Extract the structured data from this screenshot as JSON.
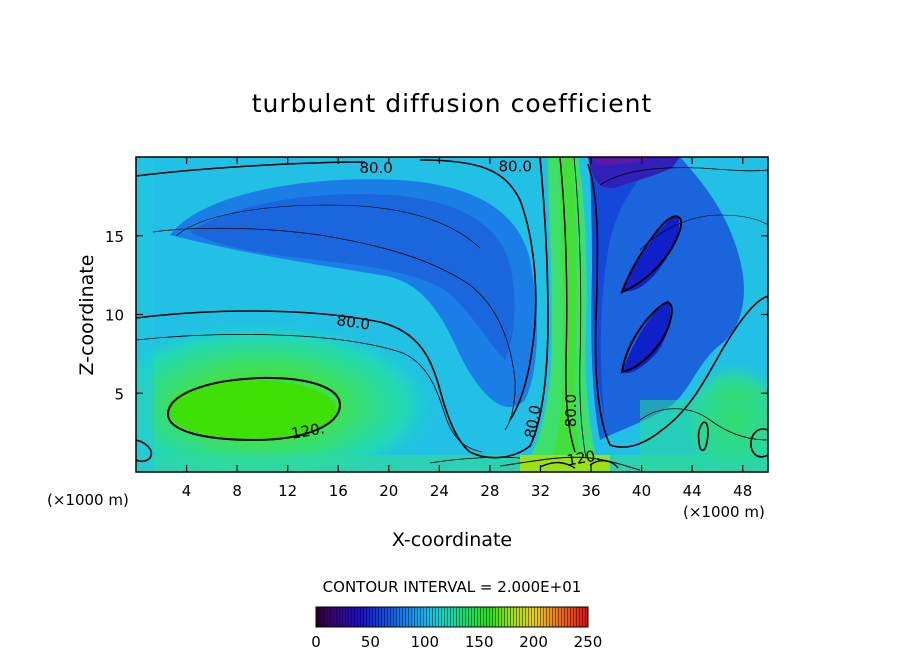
{
  "chart_data": {
    "type": "heatmap",
    "title": "turbulent diffusion coefficient",
    "xlabel": "X-coordinate",
    "ylabel": "Z-coordinate",
    "x_unit_left": "(×1000 m)",
    "x_unit_right": "(×1000 m)",
    "xlim": [
      0,
      50
    ],
    "ylim": [
      0,
      20
    ],
    "x_ticks": [
      4,
      8,
      12,
      16,
      20,
      24,
      28,
      32,
      36,
      40,
      44,
      48
    ],
    "y_ticks": [
      5,
      10,
      15
    ],
    "contour_interval_text": "CONTOUR INTERVAL = 2.000E+01",
    "contour_labels": [
      {
        "text": "80.0",
        "x": 19.0,
        "y": 19.3,
        "rotate": 0
      },
      {
        "text": "80.0",
        "x": 30.0,
        "y": 19.4,
        "rotate": 0
      },
      {
        "text": "80.0",
        "x": 17.2,
        "y": 9.5,
        "rotate": 8
      },
      {
        "text": "120.",
        "x": 13.6,
        "y": 2.6,
        "rotate": -10
      },
      {
        "text": "80.0",
        "x": 31.4,
        "y": 3.2,
        "rotate": -80
      },
      {
        "text": "80.0",
        "x": 34.4,
        "y": 3.9,
        "rotate": -90
      },
      {
        "text": "120.",
        "x": 35.4,
        "y": 0.9,
        "rotate": -10
      }
    ],
    "colorbar": {
      "min": 0,
      "max": 250,
      "ticks": [
        "0",
        "50",
        "100",
        "150",
        "200",
        "250"
      ]
    },
    "grid": false
  }
}
